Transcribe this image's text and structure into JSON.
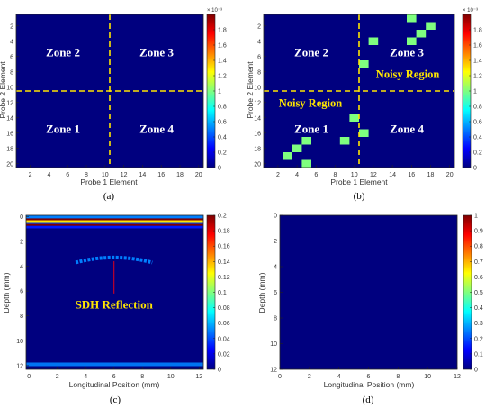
{
  "colormap": {
    "name": "jet",
    "stops": [
      "#00007f",
      "#0000ff",
      "#007fff",
      "#00ffff",
      "#7fff7f",
      "#ffff00",
      "#ff7f00",
      "#ff0000",
      "#7f0000"
    ]
  },
  "chart_data": [
    {
      "id": "a",
      "type": "heatmap",
      "caption": "(a)",
      "xlabel": "Probe 1 Element",
      "ylabel": "Probe 2 Element",
      "xlim": [
        0.5,
        20.5
      ],
      "ylim": [
        0.5,
        20.5
      ],
      "xticks": [
        2,
        4,
        6,
        8,
        10,
        12,
        14,
        16,
        18,
        20
      ],
      "yticks": [
        2,
        4,
        6,
        8,
        10,
        12,
        14,
        16,
        18,
        20
      ],
      "colorbar": {
        "multiplier": "× 10⁻³",
        "range": [
          0,
          2
        ],
        "ticks": [
          "0",
          "0.2",
          "0.4",
          "0.6",
          "0.8",
          "1",
          "1.2",
          "1.4",
          "1.6",
          "1.8"
        ]
      },
      "background_value": 0.0,
      "cells": [],
      "zones": [
        {
          "label": "Zone 2",
          "x": 5.5,
          "y": 5.5
        },
        {
          "label": "Zone 3",
          "x": 15.5,
          "y": 5.5
        },
        {
          "label": "Zone 1",
          "x": 5.5,
          "y": 15.5
        },
        {
          "label": "Zone 4",
          "x": 15.5,
          "y": 15.5
        }
      ],
      "dividers": {
        "x": 10.5,
        "y": 10.5
      },
      "annotations": []
    },
    {
      "id": "b",
      "type": "heatmap",
      "caption": "(b)",
      "xlabel": "Probe 1 Element",
      "ylabel": "Probe 2 Element",
      "xlim": [
        0.5,
        20.5
      ],
      "ylim": [
        0.5,
        20.5
      ],
      "xticks": [
        2,
        4,
        6,
        8,
        10,
        12,
        14,
        16,
        18,
        20
      ],
      "yticks": [
        2,
        4,
        6,
        8,
        10,
        12,
        14,
        16,
        18,
        20
      ],
      "colorbar": {
        "multiplier": "× 10⁻³",
        "range": [
          0,
          2
        ],
        "ticks": [
          "0",
          "0.2",
          "0.4",
          "0.6",
          "0.8",
          "1",
          "1.2",
          "1.4",
          "1.6",
          "1.8"
        ]
      },
      "background_value": 0.0,
      "cells": [
        {
          "x": 16,
          "y": 1,
          "v": 1.0
        },
        {
          "x": 18,
          "y": 2,
          "v": 1.0
        },
        {
          "x": 17,
          "y": 3,
          "v": 1.0
        },
        {
          "x": 12,
          "y": 4,
          "v": 1.0
        },
        {
          "x": 16,
          "y": 4,
          "v": 1.0
        },
        {
          "x": 11,
          "y": 7,
          "v": 1.0
        },
        {
          "x": 10,
          "y": 14,
          "v": 1.0
        },
        {
          "x": 11,
          "y": 16,
          "v": 1.0
        },
        {
          "x": 5,
          "y": 17,
          "v": 1.0
        },
        {
          "x": 9,
          "y": 17,
          "v": 1.0
        },
        {
          "x": 4,
          "y": 18,
          "v": 1.0
        },
        {
          "x": 3,
          "y": 19,
          "v": 1.0
        },
        {
          "x": 5,
          "y": 20,
          "v": 1.0
        }
      ],
      "zones": [
        {
          "label": "Zone 2",
          "x": 5.5,
          "y": 5.5
        },
        {
          "label": "Zone 3",
          "x": 15.5,
          "y": 5.5
        },
        {
          "label": "Zone 1",
          "x": 5.5,
          "y": 15.5
        },
        {
          "label": "Zone 4",
          "x": 15.5,
          "y": 15.5
        }
      ],
      "dividers": {
        "x": 10.5,
        "y": 10.5
      },
      "annotations": [
        {
          "label": "Noisy Region",
          "x": 15.6,
          "y": 8.3
        },
        {
          "label": "Noisy Region",
          "x": 5.4,
          "y": 12.1
        }
      ]
    },
    {
      "id": "c",
      "type": "heatmap",
      "caption": "(c)",
      "xlabel": "Longitudinal Position (mm)",
      "ylabel": "Depth (mm)",
      "xlim": [
        -0.2,
        12.3
      ],
      "ylim": [
        -0.1,
        12.3
      ],
      "xticks": [
        0,
        2,
        4,
        6,
        8,
        10,
        12
      ],
      "yticks": [
        0,
        2,
        4,
        6,
        8,
        10,
        12
      ],
      "colorbar": {
        "range": [
          0,
          0.2
        ],
        "ticks": [
          "0",
          "0.02",
          "0.04",
          "0.06",
          "0.08",
          "0.1",
          "0.12",
          "0.14",
          "0.16",
          "0.18",
          "0.2"
        ]
      },
      "background_value": 0.0,
      "bands": [
        {
          "y0": -0.1,
          "y1": 0.15,
          "v": 0.05
        },
        {
          "y0": 0.15,
          "y1": 0.3,
          "v": 0.2
        },
        {
          "y0": 0.3,
          "y1": 0.45,
          "v": 0.13
        },
        {
          "y0": 0.45,
          "y1": 0.6,
          "v": 0.04
        },
        {
          "y0": 0.6,
          "y1": 0.75,
          "v": 0.2
        },
        {
          "y0": 0.75,
          "y1": 0.95,
          "v": 0.03
        }
      ],
      "arc": {
        "x0": 3.3,
        "x1": 8.7,
        "y_top": 3.3,
        "y_edge": 3.7,
        "v": 0.05
      },
      "backwall": {
        "y": 11.9,
        "v": 0.05
      },
      "annotations": [
        {
          "label": "SDH Reflection",
          "x": 6.0,
          "y": 7.1
        }
      ],
      "marker": {
        "x": 6.0,
        "y0": 3.6,
        "y1": 6.2
      }
    },
    {
      "id": "d",
      "type": "heatmap",
      "caption": "(d)",
      "xlabel": "Longitudinal Position (mm)",
      "ylabel": "Depth (mm)",
      "xlim": [
        0,
        12
      ],
      "ylim": [
        0,
        12
      ],
      "xticks": [
        0,
        2,
        4,
        6,
        8,
        10,
        12
      ],
      "yticks": [
        0,
        2,
        4,
        6,
        8,
        10,
        12
      ],
      "colorbar": {
        "range": [
          0,
          1
        ],
        "ticks": [
          "0",
          "0.1",
          "0.2",
          "0.3",
          "0.4",
          "0.5",
          "0.6",
          "0.7",
          "0.8",
          "0.9",
          "1"
        ]
      },
      "background_value": 0.0,
      "annotations": []
    }
  ]
}
